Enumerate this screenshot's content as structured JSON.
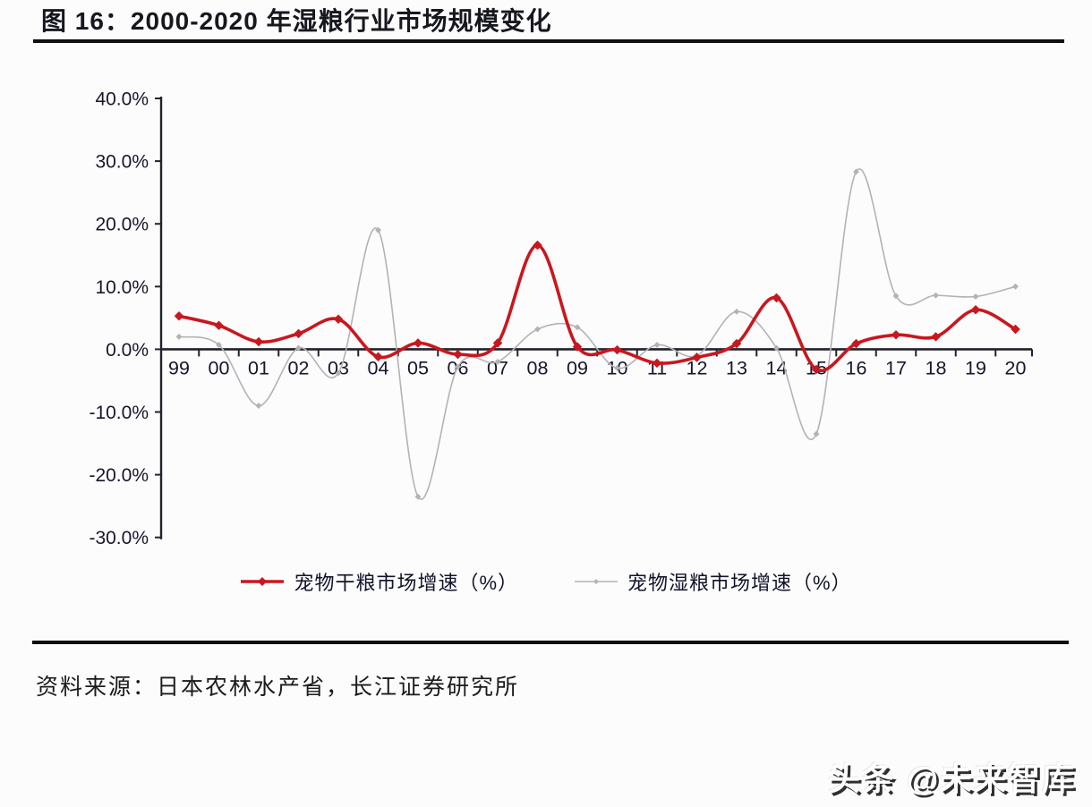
{
  "page": {
    "title": "图  16：2000-2020 年湿粮行业市场规模变化",
    "source": "资料来源：日本农林水产省，长江证券研究所",
    "watermark": "头条 @未来智库"
  },
  "colors": {
    "dry_series": "#c9171e",
    "wet_series": "#b3b3b5",
    "axis": "#23232c",
    "label_text": "#16162c"
  },
  "chart_data": {
    "type": "line",
    "title": "2000-2020 年湿粮行业市场规模变化",
    "categories": [
      "99",
      "00",
      "01",
      "02",
      "03",
      "04",
      "05",
      "06",
      "07",
      "08",
      "09",
      "10",
      "11",
      "12",
      "13",
      "14",
      "15",
      "16",
      "17",
      "18",
      "19",
      "20"
    ],
    "series": [
      {
        "name": "宠物干粮市场增速（%）",
        "color": "#c9171e",
        "marker": "diamond",
        "line_width": 3.6,
        "values": [
          5.3,
          3.8,
          1.2,
          2.5,
          4.8,
          -1.2,
          1.0,
          -0.8,
          1.0,
          16.6,
          0.4,
          -0.1,
          -2.2,
          -1.3,
          0.9,
          8.2,
          -3.2,
          0.9,
          2.3,
          2.0,
          6.3,
          3.2
        ]
      },
      {
        "name": "宠物湿粮市场增速（%）",
        "color": "#b3b3b5",
        "marker": "diamond",
        "line_width": 1.6,
        "values": [
          2.0,
          0.7,
          -9.0,
          0.2,
          -3.8,
          19.0,
          -23.5,
          -2.8,
          -2.0,
          3.2,
          3.5,
          -3.0,
          0.7,
          -1.0,
          6.0,
          0.2,
          -13.5,
          28.3,
          8.5,
          8.6,
          8.4,
          10.0
        ]
      }
    ],
    "ylim": [
      -30,
      40
    ],
    "ytick_values": [
      40,
      30,
      20,
      10,
      0,
      -10,
      -20,
      -30
    ],
    "ytick_labels": [
      "40.0%",
      "30.0%",
      "20.0%",
      "10.0%",
      "0.0%",
      "-10.0%",
      "-20.0%",
      "-30.0%"
    ],
    "grid": false,
    "smooth": true,
    "legend_position": "bottom"
  }
}
